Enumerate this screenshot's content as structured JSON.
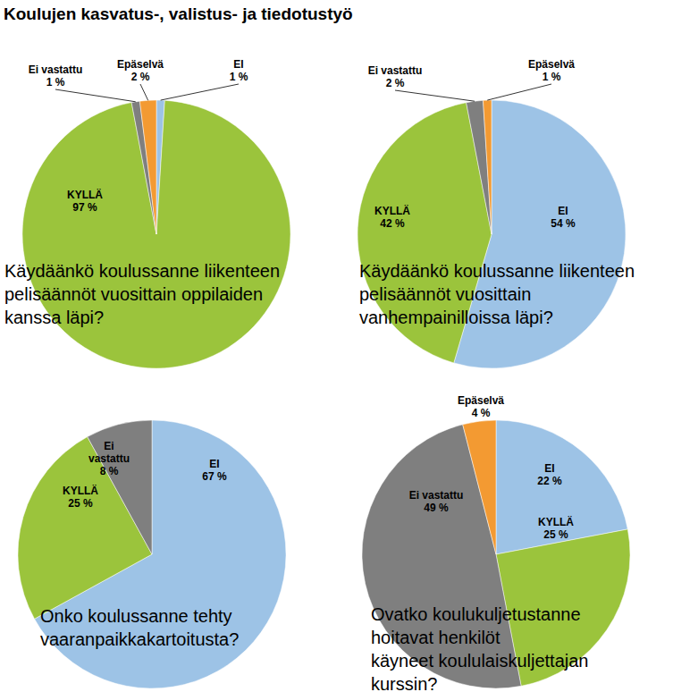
{
  "title": "Koulujen kasvatus-, valistus- ja tiedotustyö",
  "chart_data": [
    {
      "type": "pie",
      "title": "Käydäänkö koulussanne liikenteen\npelisäännöt vuosittain oppilaiden\nkanssa läpi?",
      "categories": [
        "EI",
        "KYLLÄ",
        "Ei vastattu",
        "Epäselvä"
      ],
      "values": [
        1,
        97,
        1,
        2
      ],
      "value_labels": [
        "1 %",
        "97 %",
        "1 %",
        "2 %"
      ],
      "colors": [
        "#9dc3e6",
        "#9bc43c",
        "#7f7f7f",
        "#f39a32"
      ],
      "data_labels": true
    },
    {
      "type": "pie",
      "title": "Käydäänkö koulussanne liikenteen\npelisäännöt vuosittain\nvanhempainilloissa läpi?",
      "categories": [
        "EI",
        "KYLLÄ",
        "Ei vastattu",
        "Epäselvä"
      ],
      "values": [
        54,
        42,
        2,
        1
      ],
      "value_labels": [
        "54 %",
        "42 %",
        "2 %",
        "1 %"
      ],
      "colors": [
        "#9dc3e6",
        "#9bc43c",
        "#7f7f7f",
        "#f39a32"
      ],
      "data_labels": true
    },
    {
      "type": "pie",
      "title": "Onko koulussanne tehty\nvaaranpaikkakartoitusta?",
      "categories": [
        "EI",
        "KYLLÄ",
        "Ei vastattu"
      ],
      "values": [
        67,
        25,
        8
      ],
      "value_labels": [
        "67 %",
        "25 %",
        "8 %"
      ],
      "colors": [
        "#9dc3e6",
        "#9bc43c",
        "#7f7f7f"
      ],
      "data_labels": true
    },
    {
      "type": "pie",
      "title": "Ovatko koulukuljetustanne\nhoitavat henkilöt\nkäyneet koululaiskuljettajan\nkurssin?",
      "categories": [
        "EI",
        "KYLLÄ",
        "Ei vastattu",
        "Epäselvä"
      ],
      "values": [
        22,
        25,
        49,
        4
      ],
      "value_labels": [
        "22 %",
        "25 %",
        "49 %",
        "4 %"
      ],
      "colors": [
        "#9dc3e6",
        "#9bc43c",
        "#7f7f7f",
        "#f39a32"
      ],
      "data_labels": true
    }
  ]
}
